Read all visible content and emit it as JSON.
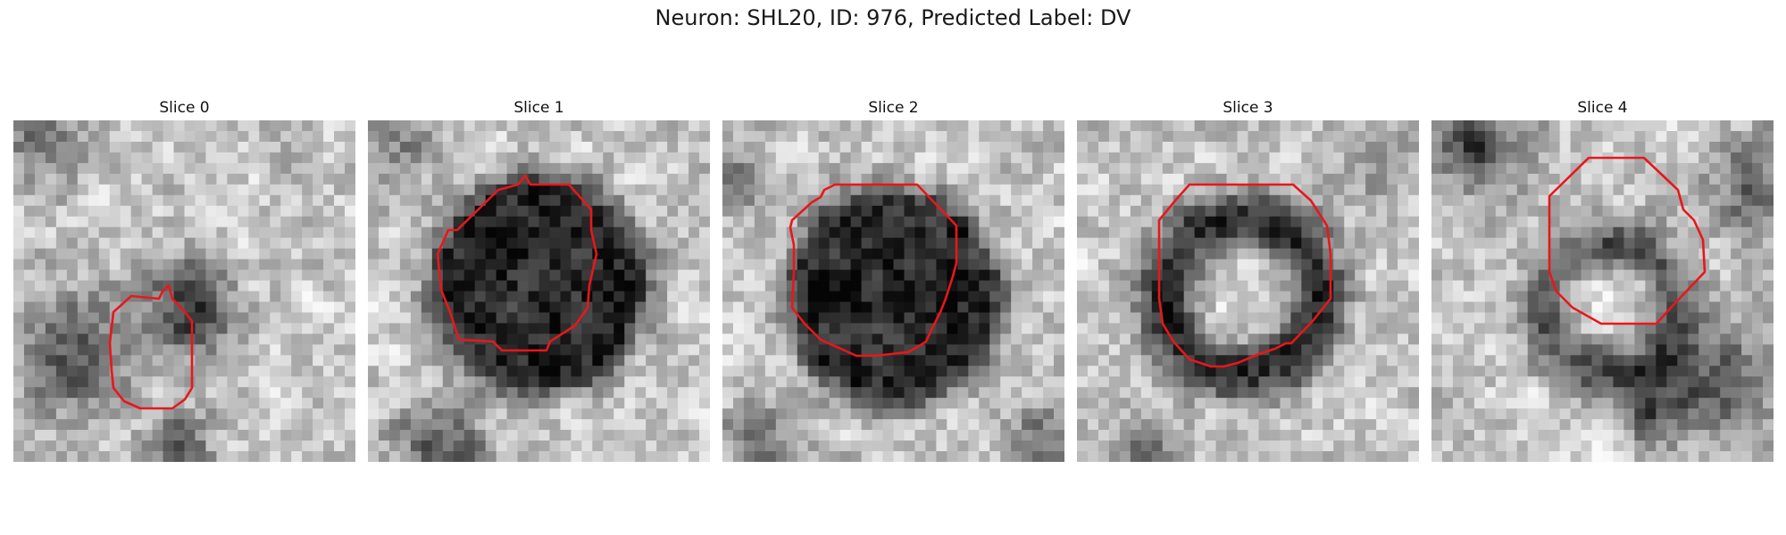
{
  "figure": {
    "title": "Neuron: SHL20, ID: 976, Predicted Label: DV"
  },
  "contour_color": "#e8171b",
  "panels": [
    {
      "title": "Slice 0",
      "pattern": "small-dark-blob"
    },
    {
      "title": "Slice 1",
      "pattern": "large-dark-disc"
    },
    {
      "title": "Slice 2",
      "pattern": "large-dark-disc"
    },
    {
      "title": "Slice 3",
      "pattern": "dark-ring-light-center"
    },
    {
      "title": "Slice 4",
      "pattern": "faint-ring-light-center"
    }
  ]
}
